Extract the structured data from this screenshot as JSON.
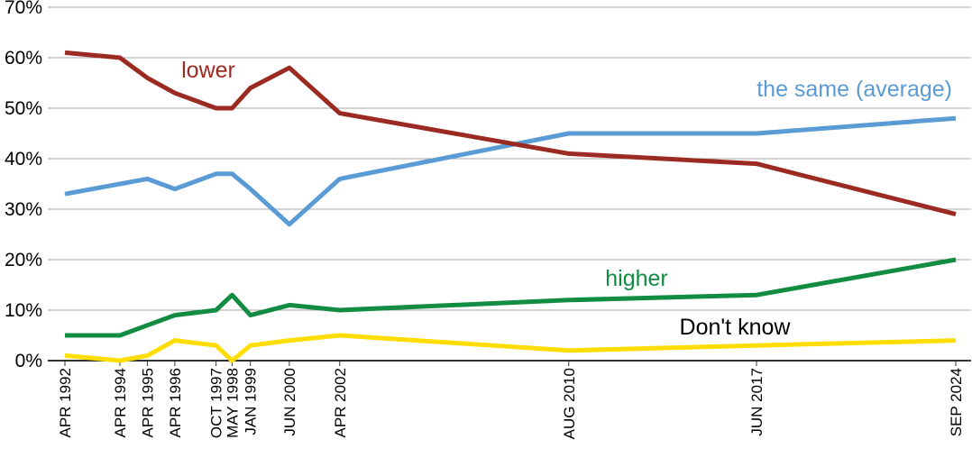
{
  "chart_data": {
    "type": "line",
    "x": [
      "APR 1992",
      "APR 1994",
      "APR 1995",
      "APR 1996",
      "OCT 1997",
      "MAY 1998",
      "JAN 1999",
      "JUN 2000",
      "APR 2002",
      "AUG 2010",
      "JUN 2017",
      "SEP 2024"
    ],
    "x_dates": [
      "1992-04",
      "1994-04",
      "1995-04",
      "1996-04",
      "1997-10",
      "1998-05",
      "1999-01",
      "2000-06",
      "2002-04",
      "2010-08",
      "2017-06",
      "2024-09"
    ],
    "yticks": [
      "0%",
      "10%",
      "20%",
      "30%",
      "40%",
      "50%",
      "60%",
      "70%"
    ],
    "ylim": [
      0,
      70
    ],
    "grid": true,
    "legend": "none",
    "series": [
      {
        "name": "lower",
        "color": "#9b2a22",
        "values": [
          61,
          60,
          56,
          53,
          50,
          50,
          54,
          58,
          49,
          41,
          39,
          29
        ]
      },
      {
        "name": "the same (average)",
        "color": "#5b9bd5",
        "values": [
          33,
          35,
          36,
          34,
          37,
          37,
          34,
          27,
          36,
          45,
          45,
          48
        ]
      },
      {
        "name": "higher",
        "color": "#128c42",
        "values": [
          5,
          5,
          7,
          9,
          10,
          13,
          9,
          11,
          10,
          12,
          13,
          20
        ]
      },
      {
        "name": "Don't know",
        "color": "#ffdd00",
        "label_color": "#000000",
        "values": [
          1,
          0,
          1,
          4,
          3,
          0,
          3,
          4,
          5,
          2,
          3,
          4
        ]
      }
    ]
  }
}
